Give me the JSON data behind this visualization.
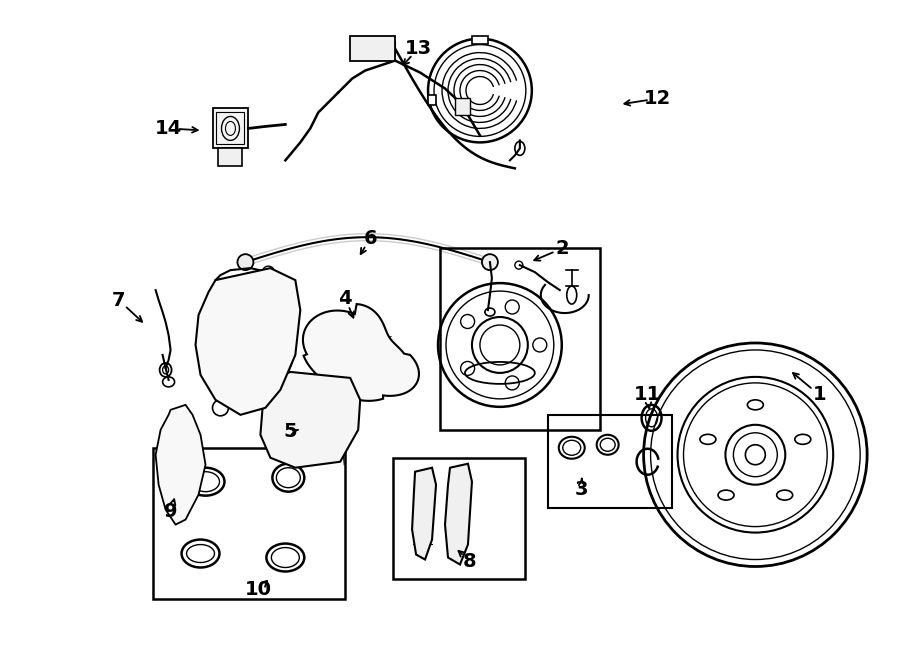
{
  "bg_color": "#ffffff",
  "line_color": "#000000",
  "fig_width": 9.0,
  "fig_height": 6.61,
  "dpi": 100,
  "labels": [
    [
      "1",
      820,
      395,
      790,
      370,
      "left"
    ],
    [
      "2",
      563,
      248,
      530,
      262,
      "left"
    ],
    [
      "3",
      582,
      490,
      582,
      478,
      "center"
    ],
    [
      "4",
      345,
      298,
      355,
      322,
      "center"
    ],
    [
      "5",
      290,
      432,
      298,
      430,
      "left"
    ],
    [
      "6",
      370,
      238,
      358,
      258,
      "center"
    ],
    [
      "7",
      118,
      300,
      145,
      325,
      "left"
    ],
    [
      "8",
      470,
      562,
      455,
      548,
      "center"
    ],
    [
      "9",
      170,
      512,
      175,
      495,
      "center"
    ],
    [
      "10",
      258,
      590,
      270,
      578,
      "center"
    ],
    [
      "11",
      648,
      395,
      650,
      413,
      "center"
    ],
    [
      "12",
      658,
      98,
      620,
      104,
      "left"
    ],
    [
      "13",
      418,
      48,
      400,
      68,
      "center"
    ],
    [
      "14",
      168,
      128,
      202,
      130,
      "left"
    ]
  ]
}
